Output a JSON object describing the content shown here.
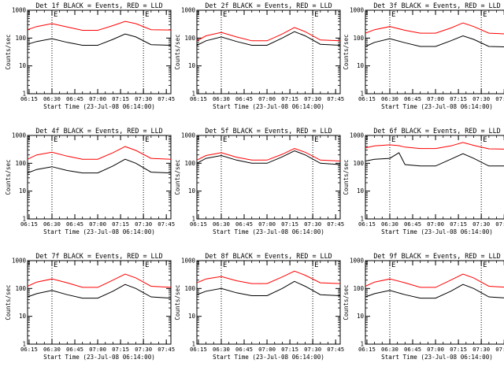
{
  "chart_data": [
    {
      "type": "line",
      "title": "Det 1f BLACK = Events, RED = LLD",
      "xlabel": "Start Time (23-Jul-08 06:14:00)",
      "ylabel": "Counts/sec",
      "x_ticks": [
        "06:15",
        "06:30",
        "06:45",
        "07:00",
        "07:15",
        "07:30",
        "07:45"
      ],
      "y_ticks": [
        "1",
        "10",
        "100",
        "1000"
      ],
      "ylim": [
        1,
        1000
      ],
      "log_y": true,
      "markers": [
        {
          "label": "E",
          "time": "06:30"
        },
        {
          "label": "E",
          "time": "07:30"
        }
      ],
      "x": [
        "06:14",
        "06:20",
        "06:30",
        "06:40",
        "06:50",
        "07:00",
        "07:10",
        "07:18",
        "07:25",
        "07:35",
        "07:48"
      ],
      "series": [
        {
          "name": "BLACK",
          "color": "#000000",
          "values": [
            60,
            75,
            95,
            70,
            55,
            55,
            90,
            140,
            110,
            58,
            55
          ]
        },
        {
          "name": "RED",
          "color": "#ff0000",
          "values": [
            200,
            260,
            330,
            250,
            190,
            190,
            280,
            400,
            330,
            200,
            195
          ]
        }
      ]
    },
    {
      "type": "line",
      "title": "Det 2f BLACK = Events, RED = LLD",
      "xlabel": "Start Time (23-Jul-08 06:14:00)",
      "ylabel": "Counts/sec",
      "x_ticks": [
        "06:15",
        "06:30",
        "06:45",
        "07:00",
        "07:15",
        "07:30",
        "07:45"
      ],
      "y_ticks": [
        "1",
        "10",
        "100",
        "1000"
      ],
      "ylim": [
        1,
        1000
      ],
      "log_y": true,
      "markers": [
        {
          "label": "E",
          "time": "06:30"
        },
        {
          "label": "E",
          "time": "07:30"
        }
      ],
      "x": [
        "06:14",
        "06:20",
        "06:30",
        "06:40",
        "06:50",
        "07:00",
        "07:10",
        "07:18",
        "07:25",
        "07:35",
        "07:48"
      ],
      "series": [
        {
          "name": "BLACK",
          "color": "#000000",
          "values": [
            55,
            80,
            110,
            75,
            55,
            55,
            100,
            170,
            120,
            60,
            55
          ]
        },
        {
          "name": "RED",
          "color": "#ff0000",
          "values": [
            80,
            120,
            160,
            110,
            80,
            80,
            140,
            240,
            170,
            85,
            80
          ]
        }
      ]
    },
    {
      "type": "line",
      "title": "Det 3f BLACK = Events, RED = LLD",
      "xlabel": "Start Time (23-Jul-08 06:14:00)",
      "ylabel": "Counts/sec",
      "x_ticks": [
        "06:15",
        "06:30",
        "06:45",
        "07:00",
        "07:15",
        "07:30",
        "07:45"
      ],
      "y_ticks": [
        "1",
        "10",
        "100",
        "1000"
      ],
      "ylim": [
        1,
        1000
      ],
      "log_y": true,
      "markers": [
        {
          "label": "E",
          "time": "06:30"
        },
        {
          "label": "E",
          "time": "07:30"
        }
      ],
      "x": [
        "06:14",
        "06:20",
        "06:30",
        "06:40",
        "06:50",
        "07:00",
        "07:10",
        "07:18",
        "07:25",
        "07:35",
        "07:48"
      ],
      "series": [
        {
          "name": "BLACK",
          "color": "#000000",
          "values": [
            50,
            70,
            95,
            68,
            50,
            50,
            80,
            120,
            90,
            50,
            48
          ]
        },
        {
          "name": "RED",
          "color": "#ff0000",
          "values": [
            150,
            200,
            260,
            190,
            150,
            150,
            230,
            350,
            260,
            150,
            140
          ]
        }
      ]
    },
    {
      "type": "line",
      "title": "Det 4f BLACK = Events, RED = LLD",
      "xlabel": "Start Time (23-Jul-08 06:14:00)",
      "ylabel": "Counts/sec",
      "x_ticks": [
        "06:15",
        "06:30",
        "06:45",
        "07:00",
        "07:15",
        "07:30",
        "07:45"
      ],
      "y_ticks": [
        "1",
        "10",
        "100",
        "1000"
      ],
      "ylim": [
        1,
        1000
      ],
      "log_y": true,
      "markers": [
        {
          "label": "E",
          "time": "06:30"
        },
        {
          "label": "E",
          "time": "07:30"
        }
      ],
      "x": [
        "06:14",
        "06:20",
        "06:30",
        "06:40",
        "06:50",
        "07:00",
        "07:10",
        "07:18",
        "07:25",
        "07:35",
        "07:48"
      ],
      "series": [
        {
          "name": "BLACK",
          "color": "#000000",
          "values": [
            45,
            60,
            75,
            55,
            45,
            45,
            80,
            140,
            100,
            48,
            45
          ]
        },
        {
          "name": "RED",
          "color": "#ff0000",
          "values": [
            140,
            200,
            250,
            180,
            140,
            140,
            240,
            400,
            290,
            150,
            140
          ]
        }
      ]
    },
    {
      "type": "line",
      "title": "Det 5f BLACK = Events, RED = LLD",
      "xlabel": "Start Time (23-Jul-08 06:14:00)",
      "ylabel": "Counts/sec",
      "x_ticks": [
        "06:15",
        "06:30",
        "06:45",
        "07:00",
        "07:15",
        "07:30",
        "07:45"
      ],
      "y_ticks": [
        "1",
        "10",
        "100",
        "1000"
      ],
      "ylim": [
        1,
        1000
      ],
      "log_y": true,
      "markers": [
        {
          "label": "E",
          "time": "06:30"
        },
        {
          "label": "E",
          "time": "07:30"
        }
      ],
      "x": [
        "06:14",
        "06:20",
        "06:30",
        "06:40",
        "06:50",
        "07:00",
        "07:10",
        "07:18",
        "07:25",
        "07:35",
        "07:48"
      ],
      "series": [
        {
          "name": "BLACK",
          "color": "#000000",
          "values": [
            100,
            150,
            190,
            130,
            100,
            100,
            170,
            280,
            200,
            100,
            90
          ]
        },
        {
          "name": "RED",
          "color": "#ff0000",
          "values": [
            130,
            190,
            240,
            165,
            130,
            130,
            210,
            340,
            250,
            130,
            120
          ]
        }
      ]
    },
    {
      "type": "line",
      "title": "Det 6f BLACK = Events, RED = LLD",
      "xlabel": "Start Time (23-Jul-08 06:14:00)",
      "ylabel": "Counts/sec",
      "x_ticks": [
        "06:15",
        "06:30",
        "06:45",
        "07:00",
        "07:15",
        "07:30",
        "07:45"
      ],
      "y_ticks": [
        "1",
        "10",
        "100",
        "1000"
      ],
      "ylim": [
        1,
        1000
      ],
      "log_y": true,
      "markers": [
        {
          "label": "E",
          "time": "06:30"
        },
        {
          "label": "E",
          "time": "07:30"
        }
      ],
      "x": [
        "06:14",
        "06:20",
        "06:30",
        "06:36",
        "06:40",
        "06:50",
        "07:00",
        "07:10",
        "07:18",
        "07:25",
        "07:35",
        "07:48"
      ],
      "series": [
        {
          "name": "BLACK",
          "color": "#000000",
          "values": [
            120,
            140,
            150,
            240,
            90,
            80,
            80,
            140,
            220,
            150,
            80,
            80
          ]
        },
        {
          "name": "RED",
          "color": "#ff0000",
          "values": [
            360,
            420,
            460,
            430,
            380,
            340,
            340,
            420,
            560,
            440,
            330,
            320
          ]
        }
      ]
    },
    {
      "type": "line",
      "title": "Det 7f BLACK = Events, RED = LLD",
      "xlabel": "Start Time (23-Jul-08 06:14:00)",
      "ylabel": "Counts/sec",
      "x_ticks": [
        "06:15",
        "06:30",
        "06:45",
        "07:00",
        "07:15",
        "07:30",
        "07:45"
      ],
      "y_ticks": [
        "1",
        "10",
        "100",
        "1000"
      ],
      "ylim": [
        1,
        1000
      ],
      "log_y": true,
      "markers": [
        {
          "label": "E",
          "time": "06:30"
        },
        {
          "label": "E",
          "time": "07:30"
        }
      ],
      "x": [
        "06:14",
        "06:20",
        "06:30",
        "06:40",
        "06:50",
        "07:00",
        "07:10",
        "07:18",
        "07:25",
        "07:35",
        "07:48"
      ],
      "series": [
        {
          "name": "BLACK",
          "color": "#000000",
          "values": [
            50,
            65,
            85,
            60,
            45,
            45,
            80,
            140,
            100,
            50,
            45
          ]
        },
        {
          "name": "RED",
          "color": "#ff0000",
          "values": [
            120,
            170,
            220,
            160,
            110,
            110,
            200,
            330,
            240,
            120,
            110
          ]
        }
      ]
    },
    {
      "type": "line",
      "title": "Det 8f BLACK = Events, RED = LLD",
      "xlabel": "Start Time (23-Jul-08 06:14:00)",
      "ylabel": "Counts/sec",
      "x_ticks": [
        "06:15",
        "06:30",
        "06:45",
        "07:00",
        "07:15",
        "07:30",
        "07:45"
      ],
      "y_ticks": [
        "1",
        "10",
        "100",
        "1000"
      ],
      "ylim": [
        1,
        1000
      ],
      "log_y": true,
      "markers": [
        {
          "label": "E",
          "time": "06:30"
        },
        {
          "label": "E",
          "time": "07:30"
        }
      ],
      "x": [
        "06:14",
        "06:20",
        "06:30",
        "06:40",
        "06:50",
        "07:00",
        "07:10",
        "07:18",
        "07:25",
        "07:35",
        "07:48"
      ],
      "series": [
        {
          "name": "BLACK",
          "color": "#000000",
          "values": [
            60,
            80,
            100,
            70,
            55,
            55,
            100,
            180,
            120,
            60,
            55
          ]
        },
        {
          "name": "RED",
          "color": "#ff0000",
          "values": [
            160,
            220,
            270,
            190,
            150,
            150,
            260,
            420,
            300,
            160,
            150
          ]
        }
      ]
    },
    {
      "type": "line",
      "title": "Det 9f BLACK = Events, RED = LLD",
      "xlabel": "Start Time (23-Jul-08 06:14:00)",
      "ylabel": "Counts/sec",
      "x_ticks": [
        "06:15",
        "06:30",
        "06:45",
        "07:00",
        "07:15",
        "07:30",
        "07:45"
      ],
      "y_ticks": [
        "1",
        "10",
        "100",
        "1000"
      ],
      "ylim": [
        1,
        1000
      ],
      "log_y": true,
      "markers": [
        {
          "label": "E",
          "time": "06:30"
        },
        {
          "label": "E",
          "time": "07:30"
        }
      ],
      "x": [
        "06:14",
        "06:20",
        "06:30",
        "06:40",
        "06:50",
        "07:00",
        "07:10",
        "07:18",
        "07:25",
        "07:35",
        "07:48"
      ],
      "series": [
        {
          "name": "BLACK",
          "color": "#000000",
          "values": [
            50,
            65,
            85,
            60,
            45,
            45,
            80,
            140,
            100,
            50,
            45
          ]
        },
        {
          "name": "RED",
          "color": "#ff0000",
          "values": [
            120,
            170,
            220,
            160,
            110,
            110,
            200,
            330,
            240,
            120,
            110
          ]
        }
      ]
    }
  ]
}
